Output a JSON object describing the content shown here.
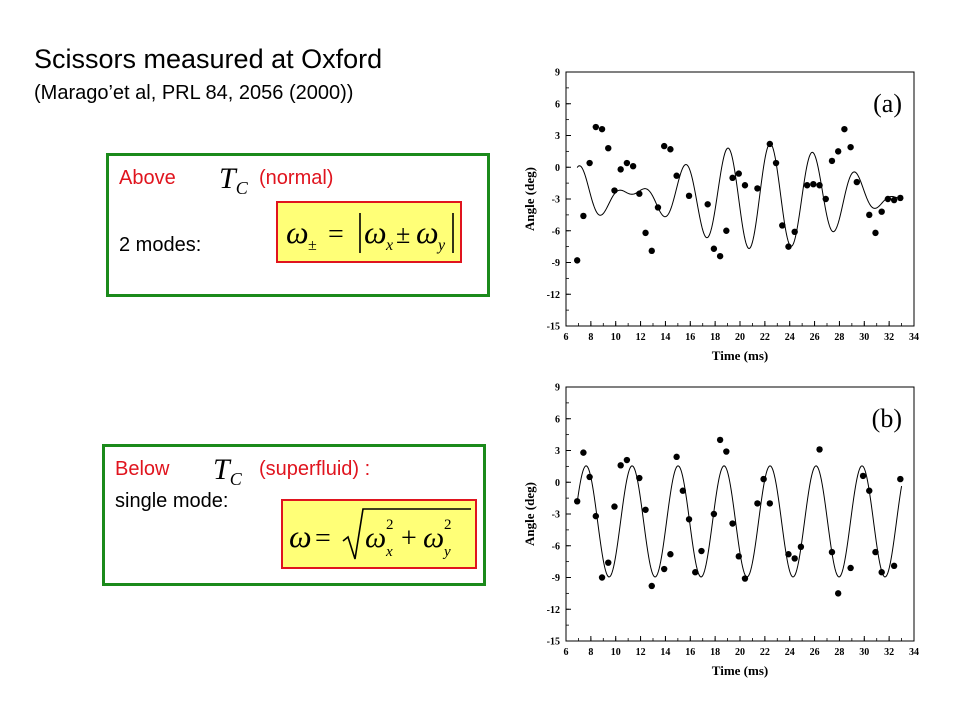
{
  "heading": {
    "title": "Scissors measured at Oxford",
    "subtitle": "(Marago’et al, PRL 84, 2056 (2000))"
  },
  "above_box": {
    "label_above": "Above",
    "tc": "T",
    "tc_sub": "C",
    "label_normal": "(normal)",
    "label_modes": "2 modes:",
    "formula": {
      "omega": "ω",
      "pm_sub": "±",
      "eq": "=",
      "x_sub": "x",
      "pm": "±",
      "y_sub": "y"
    }
  },
  "below_box": {
    "label_below": "Below",
    "tc": "T",
    "tc_sub": "C",
    "label_superfluid": "(superfluid) :",
    "label_single": "single mode:",
    "formula": {
      "omega": "ω",
      "eq": "=",
      "x_sub": "x",
      "y_sub": "y",
      "sq": "2"
    }
  },
  "colors": {
    "box_border": "#1b8a1b",
    "label_red": "#e0141e",
    "formula_bg": "#ffff77"
  },
  "chart_data": [
    {
      "type": "scatter",
      "panel_label": "(a)",
      "xlabel": "Time (ms)",
      "ylabel": "Angle (deg)",
      "xlim": [
        6,
        34
      ],
      "ylim": [
        -15,
        9
      ],
      "xticks": [
        6,
        8,
        10,
        12,
        14,
        16,
        18,
        20,
        22,
        24,
        26,
        28,
        30,
        32,
        34
      ],
      "yticks": [
        9,
        6,
        3,
        0,
        -3,
        -6,
        -9,
        -12,
        -15
      ],
      "points": [
        [
          6.9,
          -8.8
        ],
        [
          7.4,
          -4.6
        ],
        [
          7.9,
          0.4
        ],
        [
          8.4,
          3.8
        ],
        [
          8.9,
          3.6
        ],
        [
          9.4,
          1.8
        ],
        [
          9.9,
          -2.2
        ],
        [
          10.4,
          -0.2
        ],
        [
          10.9,
          0.4
        ],
        [
          11.4,
          0.1
        ],
        [
          11.9,
          -2.5
        ],
        [
          12.4,
          -6.2
        ],
        [
          12.9,
          -7.9
        ],
        [
          13.4,
          -3.8
        ],
        [
          13.9,
          2.0
        ],
        [
          14.4,
          1.7
        ],
        [
          14.9,
          -0.8
        ],
        [
          15.9,
          -2.7
        ],
        [
          17.4,
          -3.5
        ],
        [
          17.9,
          -7.7
        ],
        [
          18.4,
          -8.4
        ],
        [
          18.9,
          -6.0
        ],
        [
          19.4,
          -1.0
        ],
        [
          19.9,
          -0.6
        ],
        [
          20.4,
          -1.7
        ],
        [
          21.4,
          -2.0
        ],
        [
          22.4,
          2.2
        ],
        [
          22.9,
          0.4
        ],
        [
          23.4,
          -5.5
        ],
        [
          23.9,
          -7.5
        ],
        [
          24.4,
          -6.1
        ],
        [
          25.4,
          -1.7
        ],
        [
          25.9,
          -1.6
        ],
        [
          26.4,
          -1.7
        ],
        [
          26.9,
          -3.0
        ],
        [
          27.4,
          0.6
        ],
        [
          27.9,
          1.5
        ],
        [
          28.4,
          3.6
        ],
        [
          28.9,
          1.9
        ],
        [
          29.4,
          -1.4
        ],
        [
          30.4,
          -4.5
        ],
        [
          30.9,
          -6.2
        ],
        [
          31.4,
          -4.2
        ],
        [
          31.9,
          -3.0
        ],
        [
          32.4,
          -3.1
        ],
        [
          32.9,
          -2.9
        ]
      ],
      "fit_curve": {
        "t_start": 6.9,
        "t_end": 33.0,
        "y0": -2.75,
        "amp1": 2.6,
        "period1": 3.7,
        "phase1": 1.1,
        "amp2": 2.4,
        "period2": 3.15,
        "phase2": 0.9
      }
    },
    {
      "type": "scatter",
      "panel_label": "(b)",
      "xlabel": "Time (ms)",
      "ylabel": "Angle (deg)",
      "xlim": [
        6,
        34
      ],
      "ylim": [
        -15,
        9
      ],
      "xticks": [
        6,
        8,
        10,
        12,
        14,
        16,
        18,
        20,
        22,
        24,
        26,
        28,
        30,
        32,
        34
      ],
      "yticks": [
        9,
        6,
        3,
        0,
        -3,
        -6,
        -9,
        -12,
        -15
      ],
      "points": [
        [
          6.9,
          -1.8
        ],
        [
          7.4,
          2.8
        ],
        [
          7.9,
          0.5
        ],
        [
          8.4,
          -3.2
        ],
        [
          8.9,
          -9.0
        ],
        [
          9.4,
          -7.6
        ],
        [
          9.9,
          -2.3
        ],
        [
          10.4,
          1.6
        ],
        [
          10.9,
          2.1
        ],
        [
          11.9,
          0.4
        ],
        [
          12.4,
          -2.6
        ],
        [
          12.9,
          -9.8
        ],
        [
          13.9,
          -8.2
        ],
        [
          14.4,
          -6.8
        ],
        [
          14.9,
          2.4
        ],
        [
          15.4,
          -0.8
        ],
        [
          15.9,
          -3.5
        ],
        [
          16.4,
          -8.5
        ],
        [
          16.9,
          -6.5
        ],
        [
          17.9,
          -3.0
        ],
        [
          18.4,
          4.0
        ],
        [
          18.9,
          2.9
        ],
        [
          19.4,
          -3.9
        ],
        [
          19.9,
          -7.0
        ],
        [
          20.4,
          -9.1
        ],
        [
          21.4,
          -2.0
        ],
        [
          21.9,
          0.3
        ],
        [
          22.4,
          -2.0
        ],
        [
          23.9,
          -6.8
        ],
        [
          24.4,
          -7.2
        ],
        [
          24.9,
          -6.1
        ],
        [
          26.4,
          3.1
        ],
        [
          27.4,
          -6.6
        ],
        [
          27.9,
          -10.5
        ],
        [
          28.9,
          -8.1
        ],
        [
          29.9,
          0.6
        ],
        [
          30.4,
          -0.8
        ],
        [
          30.9,
          -6.6
        ],
        [
          31.4,
          -8.5
        ],
        [
          32.4,
          -7.9
        ],
        [
          32.9,
          0.3
        ]
      ],
      "fit_curve": {
        "t_start": 6.9,
        "t_end": 33.0,
        "y0": -3.7,
        "amp1": 5.25,
        "period1": 3.7,
        "phase1": 1.2,
        "amp2": 0,
        "period2": 1,
        "phase2": 0
      }
    }
  ]
}
